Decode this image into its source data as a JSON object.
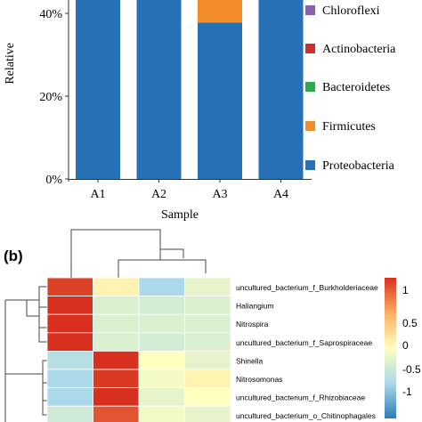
{
  "figure_a": {
    "y_axis_label": "Relative",
    "y_ticks": [
      "0%",
      "20%",
      "40%"
    ],
    "x_axis_label": "Sample",
    "chart_data": {
      "type": "bar",
      "stacked": true,
      "categories": [
        "A1",
        "A2",
        "A3",
        "A4"
      ],
      "ylim": [
        0,
        0.4
      ],
      "series": [
        {
          "name": "Proteobacteria",
          "color": "#2670b5",
          "values": [
            0.4,
            0.4,
            0.378,
            0.4
          ]
        },
        {
          "name": "Firmicutes",
          "color": "#f28d2c",
          "values": [
            0,
            0,
            0.022,
            0
          ]
        }
      ],
      "legend": [
        {
          "name": "Chloroflexi",
          "color": "#8a5fb5"
        },
        {
          "name": "Actinobacteria",
          "color": "#d22e2e"
        },
        {
          "name": "Bacteroidetes",
          "color": "#2eaa4a"
        },
        {
          "name": "Firmicutes",
          "color": "#f28d2c"
        },
        {
          "name": "Proteobacteria",
          "color": "#2670b5"
        }
      ]
    }
  },
  "figure_b": {
    "panel_label": "(b)",
    "chart_data": {
      "type": "heatmap",
      "columns": 4,
      "rows": [
        "uncultured_bacterium_f_Burkholderiaceae",
        "Haliangium",
        "Nitrospira",
        "uncultured_bacterium_f_Saprospiraceae",
        "Shinella",
        "Nitrosomonas",
        "uncultured_bacterium_f_Rhizobiaceae",
        "uncultured_bacterium_o_Chitinophagales"
      ],
      "values": [
        [
          1.3,
          0.1,
          -0.7,
          -0.2
        ],
        [
          1.4,
          -0.3,
          -0.35,
          -0.3
        ],
        [
          1.4,
          -0.3,
          -0.3,
          -0.3
        ],
        [
          1.4,
          -0.3,
          -0.35,
          -0.3
        ],
        [
          -0.6,
          1.4,
          0.0,
          -0.2
        ],
        [
          -0.7,
          1.35,
          -0.1,
          0.1
        ],
        [
          -0.7,
          1.4,
          -0.2,
          0.0
        ],
        [
          -0.4,
          1.2,
          -0.1,
          -0.2
        ]
      ],
      "colorbar": {
        "ticks": [
          "1",
          "0.5",
          "0",
          "-0.5",
          "-1"
        ],
        "range": [
          -1.4,
          1.4
        ]
      }
    }
  }
}
